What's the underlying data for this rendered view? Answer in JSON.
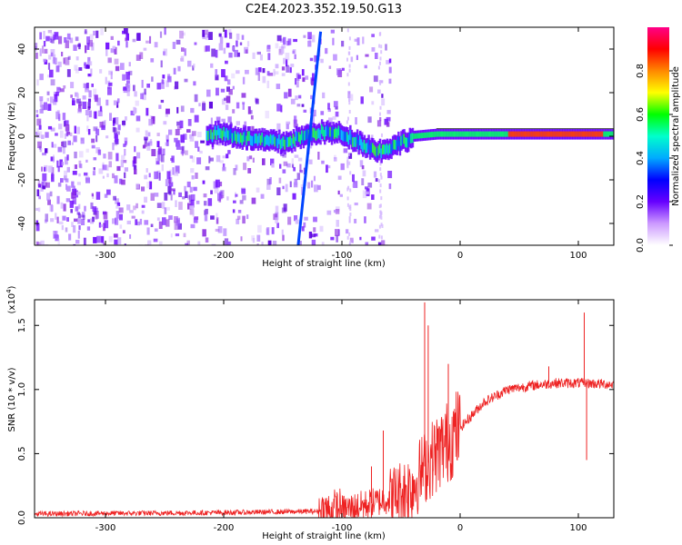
{
  "title": "C2E4.2023.352.19.50.G13",
  "chart_data": [
    {
      "type": "heatmap",
      "xlabel": "Height of straight line (km)",
      "ylabel": "Frequency (Hz)",
      "xlim": [
        -360,
        130
      ],
      "ylim": [
        -50,
        50
      ],
      "xticks": [
        "-300",
        "-200",
        "-100",
        "0",
        "100"
      ],
      "yticks": [
        "-40",
        "-20",
        "0",
        "20",
        "40"
      ],
      "colorbar": {
        "label": "Normalized spectral amplitude",
        "range": [
          0,
          1
        ],
        "ticks": [
          "0.0",
          "0.2",
          "0.4",
          "0.6",
          "0.8"
        ],
        "colors": [
          "#ffffff",
          "#cc99ff",
          "#6600ff",
          "#0000ff",
          "#00aaff",
          "#00ffcc",
          "#00ff00",
          "#ffff00",
          "#ff8800",
          "#ff0000",
          "#ff0088"
        ]
      },
      "features": {
        "diagonal_line": {
          "x_start": -137,
          "y_start": -50,
          "x_end": -118,
          "y_end": 48
        },
        "signal_band_center_hz": [
          [
            -210,
            2
          ],
          [
            -190,
            0
          ],
          [
            -170,
            -2
          ],
          [
            -150,
            -3
          ],
          [
            -120,
            2
          ],
          [
            -100,
            1
          ],
          [
            -85,
            -3
          ],
          [
            -70,
            -7
          ],
          [
            -55,
            -4
          ],
          [
            -40,
            0
          ],
          [
            -20,
            1
          ],
          [
            0,
            1
          ],
          [
            40,
            1
          ],
          [
            80,
            1
          ],
          [
            130,
            1
          ]
        ]
      }
    },
    {
      "type": "line",
      "xlabel": "Height of straight line (km)",
      "ylabel": "SNR (10 * v/v)",
      "y_multiplier_label": "(x10",
      "y_multiplier_exp": "4",
      "y_multiplier_close": ")",
      "xlim": [
        -360,
        130
      ],
      "ylim": [
        0,
        1.7
      ],
      "xticks": [
        "-300",
        "-200",
        "-100",
        "0",
        "100"
      ],
      "yticks": [
        "0.0",
        "0.5",
        "1.0",
        "1.5"
      ],
      "series": [
        {
          "color": "#ee2222",
          "trend_x": [
            -360,
            -200,
            -120,
            -100,
            -80,
            -60,
            -50,
            -40,
            -30,
            -20,
            -10,
            0,
            10,
            20,
            40,
            60,
            80,
            100,
            130
          ],
          "trend_y": [
            0.03,
            0.04,
            0.05,
            0.06,
            0.1,
            0.15,
            0.2,
            0.25,
            0.4,
            0.5,
            0.6,
            0.7,
            0.8,
            0.9,
            1.0,
            1.03,
            1.05,
            1.05,
            1.04
          ],
          "spikes": [
            {
              "x": -30,
              "y": 1.68
            },
            {
              "x": -27,
              "y": 1.5
            },
            {
              "x": -10,
              "y": 1.2
            },
            {
              "x": 75,
              "y": 1.18
            },
            {
              "x": 105,
              "y": 1.6
            },
            {
              "x": 107,
              "y": 0.45
            },
            {
              "x": -65,
              "y": 0.68
            },
            {
              "x": -75,
              "y": 0.4
            }
          ]
        }
      ]
    }
  ]
}
